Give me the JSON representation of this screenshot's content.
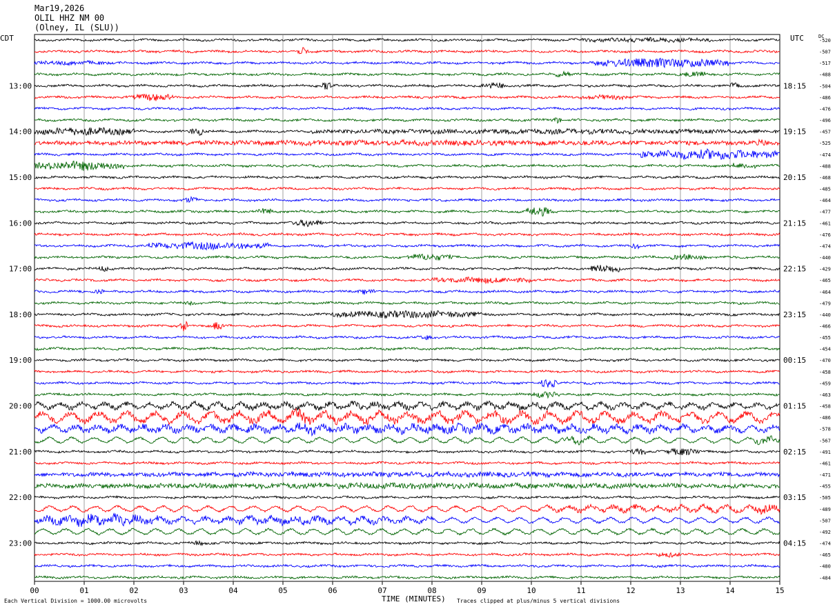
{
  "header": {
    "line1": "Mar19,2026",
    "line2": "OLIL HHZ NM 00",
    "line3": "(Olney, IL (SLU))"
  },
  "left_timezone": "CDT",
  "right_timezone": "UTC",
  "dc_label": "DC",
  "footer": {
    "left": "Each Vertical Division = 1000.00 microvolts",
    "center": "TIME (MINUTES)",
    "right": "Traces clipped at plus/minus 5 vertical divisions"
  },
  "colors": {
    "trace_cycle": [
      "#000000",
      "#ff0000",
      "#0000ff",
      "#006400"
    ],
    "grid": "#888888"
  },
  "chart_data": {
    "type": "line",
    "title": "",
    "xlabel": "TIME (MINUTES)",
    "xlim": [
      0,
      15
    ],
    "x_ticks": [
      "00",
      "01",
      "02",
      "03",
      "04",
      "05",
      "06",
      "07",
      "08",
      "09",
      "10",
      "11",
      "12",
      "13",
      "14",
      "15"
    ],
    "left_hour_labels": [
      {
        "trace": 4,
        "label": "13:00"
      },
      {
        "trace": 8,
        "label": "14:00"
      },
      {
        "trace": 12,
        "label": "15:00"
      },
      {
        "trace": 16,
        "label": "16:00"
      },
      {
        "trace": 20,
        "label": "17:00"
      },
      {
        "trace": 24,
        "label": "18:00"
      },
      {
        "trace": 28,
        "label": "19:00"
      },
      {
        "trace": 32,
        "label": "20:00"
      },
      {
        "trace": 36,
        "label": "21:00"
      },
      {
        "trace": 40,
        "label": "22:00"
      },
      {
        "trace": 44,
        "label": "23:00"
      }
    ],
    "right_hour_labels": [
      {
        "trace": 4,
        "label": "18:15"
      },
      {
        "trace": 8,
        "label": "19:15"
      },
      {
        "trace": 12,
        "label": "20:15"
      },
      {
        "trace": 16,
        "label": "21:15"
      },
      {
        "trace": 20,
        "label": "22:15"
      },
      {
        "trace": 24,
        "label": "23:15"
      },
      {
        "trace": 28,
        "label": "00:15"
      },
      {
        "trace": 32,
        "label": "01:15"
      },
      {
        "trace": 36,
        "label": "02:15"
      },
      {
        "trace": 40,
        "label": "03:15"
      },
      {
        "trace": 44,
        "label": "04:15"
      }
    ],
    "dc_offsets": [
      "-520",
      "-507",
      "-517",
      "-488",
      "-504",
      "-486",
      "-476",
      "-496",
      "-457",
      "-525",
      "-474",
      "-488",
      "-468",
      "-485",
      "-464",
      "-477",
      "-461",
      "-476",
      "-474",
      "-440",
      "-429",
      "-465",
      "-464",
      "-479",
      "-440",
      "-466",
      "-455",
      "-454",
      "-470",
      "-458",
      "-459",
      "-463",
      "-458",
      "-486",
      "-578",
      "-567",
      "-491",
      "-461",
      "-471",
      "-455",
      "-505",
      "-489",
      "-507",
      "-492",
      "-474",
      "-465",
      "-480",
      "-484"
    ],
    "traces": {
      "count": 48,
      "activity": [
        [
          [
            11.0,
            13.6,
            0.7
          ]
        ],
        [
          [
            5.3,
            5.5,
            1.8
          ]
        ],
        [
          [
            0.0,
            1.5,
            0.6
          ],
          [
            11.2,
            14.0,
            2.2
          ]
        ],
        [
          [
            10.5,
            10.8,
            1.3
          ],
          [
            13.0,
            13.5,
            1.1
          ]
        ],
        [
          [
            5.8,
            6.0,
            2.2
          ],
          [
            9.0,
            9.5,
            1.4
          ],
          [
            14.0,
            14.2,
            1.2
          ]
        ],
        [
          [
            2.0,
            2.8,
            1.6
          ],
          [
            11.0,
            12.0,
            0.7
          ]
        ],
        [],
        [
          [
            10.4,
            10.6,
            1.3
          ]
        ],
        [
          [
            0.0,
            2.0,
            1.7
          ],
          [
            3.1,
            3.4,
            1.9
          ],
          [
            5.5,
            15.0,
            0.8
          ]
        ],
        [
          [
            0.0,
            15.0,
            0.9
          ],
          [
            14.5,
            14.8,
            1.4
          ]
        ],
        [
          [
            12.2,
            15.0,
            2.3
          ]
        ],
        [
          [
            0.0,
            1.9,
            2.1
          ],
          [
            14.0,
            14.5,
            1.1
          ]
        ],
        [],
        [],
        [
          [
            3.0,
            3.3,
            1.2
          ]
        ],
        [
          [
            4.5,
            4.8,
            1.2
          ],
          [
            9.9,
            10.4,
            2.5
          ]
        ],
        [
          [
            5.2,
            5.8,
            1.5
          ]
        ],
        [],
        [
          [
            2.3,
            4.7,
            1.6
          ],
          [
            12.0,
            12.2,
            1.0
          ]
        ],
        [
          [
            7.5,
            8.4,
            1.4
          ],
          [
            12.8,
            13.5,
            1.1
          ]
        ],
        [
          [
            1.3,
            1.5,
            1.3
          ],
          [
            11.2,
            11.8,
            1.8
          ]
        ],
        [
          [
            8.0,
            10.0,
            1.1
          ]
        ],
        [
          [
            1.2,
            1.4,
            1.1
          ],
          [
            6.5,
            6.9,
            1.0
          ]
        ],
        [
          [
            3.0,
            3.2,
            1.1
          ]
        ],
        [
          [
            6.0,
            9.0,
            1.5
          ]
        ],
        [
          [
            2.9,
            3.1,
            3.0
          ],
          [
            3.6,
            3.8,
            2.5
          ]
        ],
        [
          [
            7.8,
            8.0,
            1.2
          ]
        ],
        [],
        [],
        [],
        [
          [
            10.2,
            10.5,
            2.2
          ]
        ],
        [
          [
            10.0,
            10.6,
            1.3
          ]
        ],
        [
          [
            0.0,
            15.0,
            1.0
          ]
        ],
        [
          [
            0.0,
            15.0,
            1.6
          ],
          [
            4.0,
            4.3,
            1.4
          ],
          [
            5.0,
            5.8,
            2.6
          ]
        ],
        [
          [
            0.0,
            15.0,
            1.5
          ],
          [
            5.2,
            5.8,
            2.6
          ]
        ],
        [
          [
            10.5,
            11.2,
            1.2
          ],
          [
            14.5,
            15.0,
            1.3
          ]
        ],
        [
          [
            12.0,
            12.3,
            1.3
          ],
          [
            12.7,
            13.4,
            1.6
          ]
        ],
        [],
        [
          [
            0.0,
            15.0,
            0.8
          ]
        ],
        [
          [
            0.0,
            15.0,
            1.0
          ]
        ],
        [],
        [
          [
            10.3,
            15.0,
            0.9
          ],
          [
            14.5,
            15.0,
            1.7
          ]
        ],
        [
          [
            0.0,
            2.5,
            2.3
          ],
          [
            2.5,
            8.0,
            1.3
          ]
        ],
        [],
        [
          [
            3.2,
            3.4,
            1.0
          ]
        ],
        [
          [
            12.5,
            13.0,
            0.9
          ]
        ],
        [],
        []
      ]
    }
  }
}
